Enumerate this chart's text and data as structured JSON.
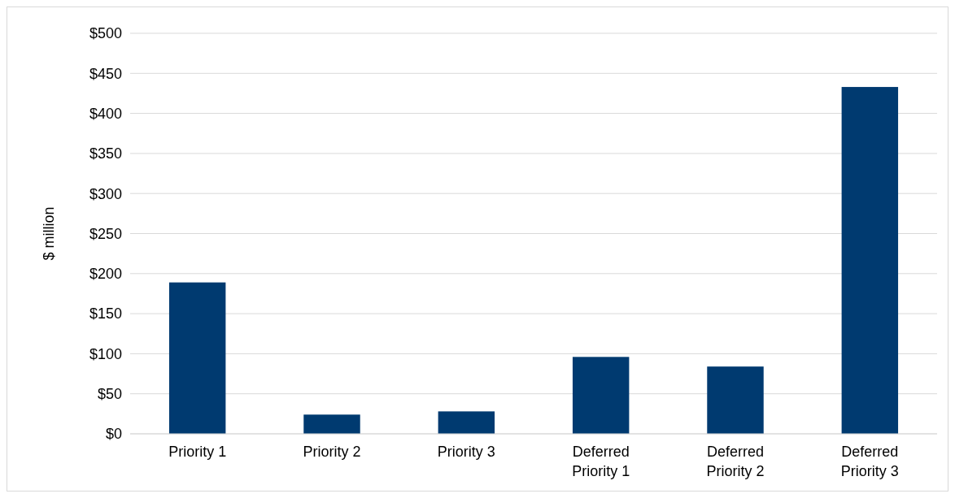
{
  "chart_data": {
    "type": "bar",
    "ylabel": "$ million",
    "categories": [
      "Priority 1",
      "Priority 2",
      "Priority 3",
      "Deferred Priority 1",
      "Deferred Priority 2",
      "Deferred Priority 3"
    ],
    "values": [
      189,
      24,
      28,
      96,
      84,
      433
    ],
    "color": "#003a70",
    "ylim": [
      0,
      500
    ],
    "yticks": [
      {
        "value": 0,
        "label": "$0"
      },
      {
        "value": 50,
        "label": "$50"
      },
      {
        "value": 100,
        "label": "$100"
      },
      {
        "value": 150,
        "label": "$150"
      },
      {
        "value": 200,
        "label": "$200"
      },
      {
        "value": 250,
        "label": "$250"
      },
      {
        "value": 300,
        "label": "$300"
      },
      {
        "value": 350,
        "label": "$350"
      },
      {
        "value": 400,
        "label": "$400"
      },
      {
        "value": 450,
        "label": "$450"
      },
      {
        "value": 500,
        "label": "$500"
      }
    ],
    "grid": "y"
  }
}
